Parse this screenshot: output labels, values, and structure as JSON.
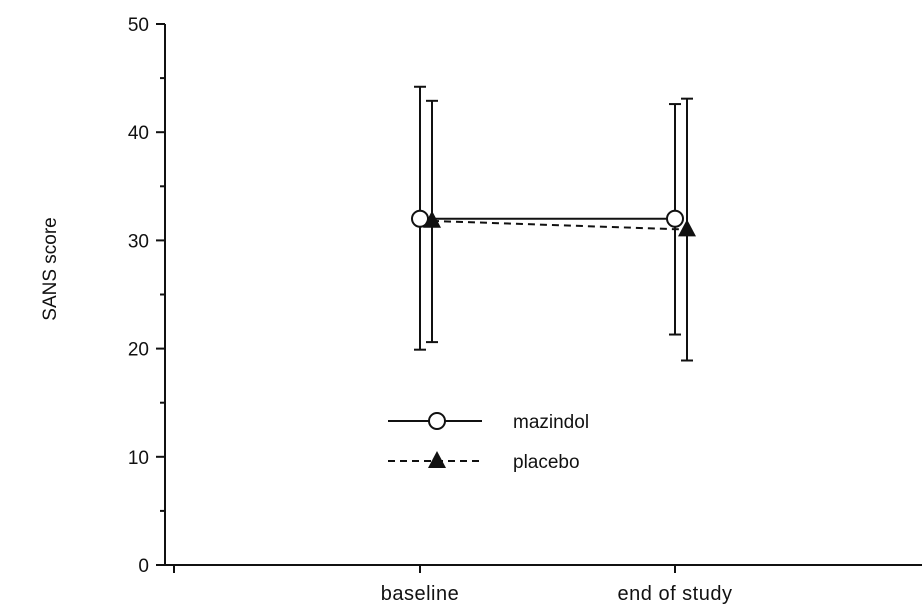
{
  "chart_data": {
    "type": "line",
    "title": "",
    "xlabel": "",
    "ylabel": "SANS score",
    "ylim": [
      0,
      50
    ],
    "yticks": [
      0,
      10,
      20,
      30,
      40,
      50
    ],
    "categories": [
      "baseline",
      "end of study"
    ],
    "grid": false,
    "legend_position": "center",
    "series": [
      {
        "name": "mazindol",
        "marker": "open-circle",
        "line_style": "solid",
        "values": [
          32,
          32
        ],
        "error_lower": [
          19.9,
          21.3
        ],
        "error_upper": [
          44.2,
          42.6
        ]
      },
      {
        "name": "placebo",
        "marker": "filled-triangle",
        "line_style": "dashed",
        "values": [
          31.8,
          31.0
        ],
        "error_lower": [
          20.6,
          18.9
        ],
        "error_upper": [
          42.9,
          43.1
        ]
      }
    ]
  }
}
